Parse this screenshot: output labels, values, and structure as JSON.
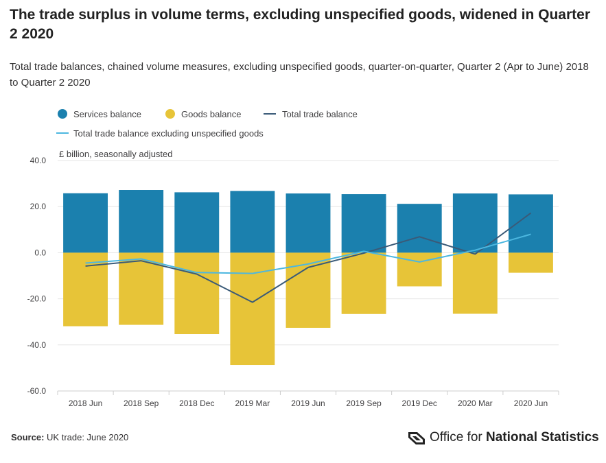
{
  "title": "The trade surplus in volume terms, excluding unspecified goods, widened in Quarter 2 2020",
  "subtitle": "Total trade balances, chained volume measures, excluding unspecified goods, quarter-on-quarter, Quarter 2 (Apr to June) 2018 to Quarter 2 2020",
  "source": {
    "label": "Source:",
    "text": "UK trade: June 2020"
  },
  "logo": {
    "text_regular": "Office for ",
    "text_bold": "National Statistics"
  },
  "colors": {
    "services": "#1b80ae",
    "goods": "#e7c438",
    "total": "#3a5a78",
    "total_excl": "#4cb7e0",
    "grid": "#e6e6e6",
    "axis": "#cccccc"
  },
  "chart_data": {
    "type": "bar",
    "stacking": "diverging",
    "title": "The trade surplus in volume terms, excluding unspecified goods, widened in Quarter 2 2020",
    "ylabel": "£ billion, seasonally adjusted",
    "xlabel": "",
    "ylim": [
      -60,
      40
    ],
    "yticks": [
      -60,
      -40,
      -20,
      0,
      20,
      40
    ],
    "ytick_labels": [
      "-60.0",
      "-40.0",
      "-20.0",
      "0.0",
      "20.0",
      "40.0"
    ],
    "grid": true,
    "legend_position": "top-left",
    "categories": [
      "2018 Jun",
      "2018 Sep",
      "2018 Dec",
      "2019 Mar",
      "2019 Jun",
      "2019 Sep",
      "2019 Dec",
      "2020 Mar",
      "2020 Jun"
    ],
    "series": [
      {
        "name": "Services balance",
        "kind": "bar",
        "values": [
          25.8,
          27.2,
          26.2,
          26.8,
          25.7,
          25.4,
          21.2,
          25.7,
          25.3
        ]
      },
      {
        "name": "Goods balance",
        "kind": "bar",
        "values": [
          -31.9,
          -31.3,
          -35.3,
          -48.7,
          -32.6,
          -26.6,
          -14.6,
          -26.5,
          -8.7
        ]
      },
      {
        "name": "Total trade balance",
        "kind": "line",
        "values": [
          -5.8,
          -3.5,
          -9.3,
          -21.5,
          -6.4,
          -0.2,
          6.9,
          -0.6,
          17.2
        ]
      },
      {
        "name": "Total trade balance excluding unspecified goods",
        "kind": "line",
        "values": [
          -4.5,
          -2.7,
          -8.6,
          -9.0,
          -4.9,
          0.6,
          -4.0,
          1.1,
          8.0
        ]
      }
    ]
  }
}
